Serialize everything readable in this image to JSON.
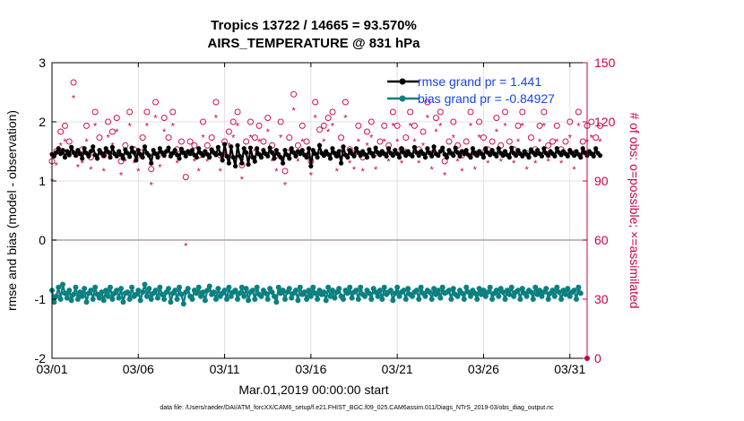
{
  "chart_data": {
    "type": "line",
    "title": "Tropics 13722 / 14665 = 93.570%",
    "subtitle": "AIRS_TEMPERATURE @ 831 hPa",
    "xlabel": "Mar.01,2019 00:00:00 start",
    "ylabel": "rmse and bias (model - observation)",
    "ylabel_right": "# of obs: o=possible; ×=assimilated",
    "footnote": "data file: /Users/raeder/DAI/ATM_forcXX/CAM6_setup/f.e21.FHIST_BGC.f09_025.CAM6assim.011/Diags_NTrS_2019-03/obs_diag_output.nc",
    "xlim": [
      1,
      32
    ],
    "ylim": [
      -2,
      3
    ],
    "ylim_right": [
      0,
      150
    ],
    "x_ticks": [
      1,
      6,
      11,
      16,
      21,
      26,
      31
    ],
    "x_tick_labels": [
      "03/01",
      "03/06",
      "03/11",
      "03/16",
      "03/21",
      "03/26",
      "03/31"
    ],
    "y_ticks": [
      -2,
      -1,
      0,
      1,
      2,
      3
    ],
    "y_tick_labels": [
      "-2",
      "-1",
      "0",
      "1",
      "2",
      "3"
    ],
    "y_ticks_right": [
      0,
      30,
      60,
      90,
      120,
      150
    ],
    "y_tick_labels_right": [
      "0",
      "30",
      "60",
      "90",
      "120",
      "150"
    ],
    "grid": true,
    "legend_position": "top-right",
    "zero_line": 0,
    "step_per_point": 0.125,
    "x_start": 1.0,
    "series": [
      {
        "name": "rmse grand pr = 1.441",
        "color": "#000000",
        "marker": "star",
        "values": [
          1.45,
          1.42,
          1.48,
          1.55,
          1.46,
          1.52,
          1.4,
          1.5,
          1.44,
          1.57,
          1.48,
          1.43,
          1.52,
          1.46,
          1.38,
          1.55,
          1.47,
          1.42,
          1.5,
          1.58,
          1.44,
          1.38,
          1.52,
          1.47,
          1.43,
          1.55,
          1.49,
          1.4,
          1.57,
          1.46,
          1.42,
          1.5,
          1.44,
          1.38,
          1.53,
          1.47,
          1.41,
          1.56,
          1.48,
          1.35,
          1.52,
          1.45,
          1.4,
          1.58,
          1.47,
          1.43,
          1.3,
          1.52,
          1.46,
          1.4,
          1.55,
          1.48,
          1.43,
          1.5,
          1.56,
          1.42,
          1.47,
          1.52,
          1.44,
          1.38,
          1.54,
          1.48,
          1.42,
          1.5,
          1.46,
          1.52,
          1.44,
          1.4,
          1.55,
          1.47,
          1.43,
          1.5,
          1.45,
          1.4,
          1.53,
          1.48,
          1.44,
          1.57,
          1.46,
          1.35,
          1.62,
          1.42,
          1.3,
          1.58,
          1.4,
          1.25,
          1.6,
          1.42,
          1.3,
          1.55,
          1.48,
          1.28,
          1.56,
          1.4,
          1.33,
          1.55,
          1.45,
          1.4,
          1.52,
          1.46,
          1.42,
          1.56,
          1.48,
          1.38,
          1.52,
          1.45,
          1.4,
          1.3,
          1.52,
          1.44,
          1.38,
          1.55,
          1.48,
          1.42,
          1.5,
          1.46,
          1.52,
          1.44,
          1.4,
          1.55,
          1.25,
          1.52,
          1.46,
          1.4,
          1.6,
          1.47,
          1.43,
          1.5,
          1.45,
          1.38,
          1.55,
          1.47,
          1.42,
          1.5,
          1.3,
          1.58,
          1.44,
          1.4,
          1.52,
          1.46,
          1.42,
          1.55,
          1.48,
          1.43,
          1.5,
          1.45,
          1.4,
          1.53,
          1.47,
          1.42,
          1.56,
          1.48,
          1.44,
          1.5,
          1.46,
          1.42,
          1.55,
          1.47,
          1.43,
          1.52,
          1.46,
          1.4,
          1.55,
          1.48,
          1.43,
          1.5,
          1.45,
          1.42,
          1.57,
          1.48,
          1.43,
          1.5,
          1.46,
          1.4,
          1.55,
          1.47,
          1.42,
          1.58,
          1.46,
          1.43,
          1.5,
          1.56,
          1.45,
          1.4,
          1.52,
          1.47,
          1.43,
          1.56,
          1.48,
          1.42,
          1.5,
          1.46,
          1.52,
          1.44,
          1.4,
          1.55,
          1.47,
          1.43,
          1.5,
          1.46,
          1.4,
          1.55,
          1.48,
          1.44,
          1.52,
          1.46,
          1.42,
          1.55,
          1.47,
          1.43,
          1.5,
          1.44,
          1.4,
          1.56,
          1.47,
          1.43,
          1.52,
          1.46,
          1.42,
          1.5,
          1.45,
          1.4,
          1.53,
          1.48,
          1.44,
          1.52,
          1.46,
          1.42,
          1.55,
          1.47,
          1.43,
          1.5,
          1.46,
          1.42,
          1.55,
          1.48,
          1.44,
          1.5,
          1.46,
          1.42,
          1.52,
          1.47,
          1.43,
          1.5,
          1.45,
          1.4,
          1.55,
          1.48,
          1.43,
          1.5,
          1.46,
          1.42,
          1.55,
          1.47,
          1.43
        ]
      },
      {
        "name": "bias grand pr = -0.84927",
        "color": "#0a8080",
        "marker": "circle",
        "values": [
          -0.85,
          -1.05,
          -0.95,
          -0.8,
          -1.0,
          -0.75,
          -0.9,
          -0.98,
          -0.85,
          -1.02,
          -0.92,
          -0.8,
          -1.0,
          -0.88,
          -0.95,
          -0.82,
          -1.05,
          -0.9,
          -0.85,
          -1.0,
          -0.8,
          -0.92,
          -0.98,
          -0.88,
          -1.02,
          -0.85,
          -0.95,
          -0.8,
          -1.0,
          -0.9,
          -0.85,
          -0.98,
          -0.82,
          -1.05,
          -0.9,
          -0.88,
          -1.0,
          -0.8,
          -0.95,
          -0.92,
          -0.85,
          -1.02,
          -0.88,
          -0.75,
          -0.95,
          -0.82,
          -1.0,
          -0.9,
          -0.85,
          -0.98,
          -0.8,
          -0.92,
          -1.0,
          -0.88,
          -0.82,
          -1.05,
          -0.9,
          -0.85,
          -1.0,
          -0.8,
          -0.92,
          -1.08,
          -0.88,
          -0.82,
          -0.95,
          -1.0,
          -0.85,
          -0.9,
          -0.8,
          -0.95,
          -0.88,
          -1.02,
          -0.85,
          -0.78,
          -0.92,
          -0.88,
          -1.0,
          -0.82,
          -0.95,
          -0.9,
          -0.85,
          -1.0,
          -0.8,
          -0.95,
          -0.88,
          -0.85,
          -1.0,
          -0.9,
          -0.8,
          -0.95,
          -0.82,
          -1.02,
          -0.88,
          -0.85,
          -1.0,
          -0.8,
          -0.92,
          -0.95,
          -0.85,
          -0.9,
          -1.0,
          -0.82,
          -0.88,
          -0.95,
          -1.05,
          -0.8,
          -0.9,
          -0.85,
          -1.0,
          -0.88,
          -0.82,
          -0.98,
          -0.9,
          -0.85,
          -1.02,
          -0.8,
          -0.92,
          -0.88,
          -1.0,
          -0.85,
          -0.95,
          -0.8,
          -0.9,
          -1.0,
          -0.85,
          -0.92,
          -0.88,
          -1.02,
          -0.8,
          -0.95,
          -0.85,
          -0.98,
          -0.88,
          -0.82,
          -0.95,
          -1.0,
          -0.85,
          -0.9,
          -0.8,
          -0.98,
          -0.88,
          -0.85,
          -1.0,
          -0.8,
          -0.92,
          -0.95,
          -0.85,
          -0.9,
          -1.0,
          -0.82,
          -0.88,
          -0.95,
          -0.85,
          -1.0,
          -0.8,
          -0.92,
          -0.88,
          -0.85,
          -1.02,
          -0.9,
          -0.8,
          -0.95,
          -0.88,
          -0.85,
          -1.0,
          -0.82,
          -0.92,
          -0.95,
          -0.88,
          -0.85,
          -1.0,
          -0.8,
          -0.9,
          -0.95,
          -0.85,
          -0.88,
          -1.0,
          -0.82,
          -0.92,
          -0.85,
          -0.98,
          -0.8,
          -0.9,
          -0.88,
          -0.85,
          -1.0,
          -0.82,
          -0.92,
          -0.95,
          -0.85,
          -0.9,
          -1.0,
          -0.8,
          -0.88,
          -0.95,
          -0.85,
          -0.9,
          -1.0,
          -0.82,
          -0.92,
          -0.85,
          -0.95,
          -0.88,
          -0.8,
          -1.0,
          -0.9,
          -0.85,
          -0.95,
          -0.82,
          -0.88,
          -1.0,
          -0.85,
          -0.92,
          -0.8,
          -0.95,
          -0.88,
          -0.85,
          -1.0,
          -0.82,
          -0.9,
          -0.95,
          -0.85,
          -0.88,
          -1.0,
          -0.8,
          -0.92,
          -0.85,
          -0.95,
          -0.88,
          -0.82,
          -1.0,
          -0.9,
          -0.85,
          -0.95,
          -0.8,
          -0.88,
          -1.0,
          -0.85,
          -0.92,
          -0.82,
          -0.95,
          -0.88,
          -0.85,
          -1.0,
          -0.8,
          -0.9
        ]
      }
    ],
    "obs_possible": [
      100,
      121,
      105,
      108,
      115,
      100,
      118,
      125,
      110,
      97,
      140,
      112,
      104,
      120,
      106,
      103,
      118,
      110,
      102,
      115,
      125,
      108,
      112,
      118,
      103,
      110,
      120,
      106,
      115,
      102,
      122,
      128,
      100,
      112,
      108,
      115,
      125,
      110,
      106,
      118,
      103,
      120,
      112,
      108,
      125,
      102,
      96,
      115,
      130,
      110,
      104,
      118,
      122,
      108,
      112,
      100,
      125,
      116,
      106,
      113,
      110,
      118,
      92,
      103,
      110,
      63,
      108,
      112,
      103,
      118,
      120,
      100,
      108,
      125,
      112,
      106,
      130,
      108,
      103,
      118,
      110,
      105,
      115,
      102,
      120,
      108,
      125,
      112,
      98,
      118,
      110,
      104,
      120,
      108,
      112,
      100,
      118,
      126,
      110,
      105,
      122,
      116,
      108,
      125,
      103,
      112,
      120,
      108,
      95,
      128,
      112,
      106,
      134,
      120,
      108,
      103,
      118,
      125,
      110,
      112,
      100,
      120,
      130,
      108,
      116,
      104,
      118,
      112,
      122,
      106,
      125,
      110,
      103,
      118,
      112,
      108,
      130,
      120,
      106,
      112,
      104,
      125,
      118,
      110,
      102,
      122,
      115,
      108,
      120,
      112,
      104,
      128,
      110,
      106,
      118,
      122,
      108,
      112,
      125,
      103,
      118,
      110,
      106,
      120,
      112,
      108,
      125,
      103,
      118,
      112,
      106,
      120,
      115,
      108,
      130,
      110,
      104,
      118,
      122,
      108,
      125,
      112,
      100,
      118,
      110,
      106,
      120,
      112,
      108,
      122,
      103,
      118,
      110,
      106,
      125,
      112,
      104,
      118,
      120,
      108,
      112,
      130,
      106,
      118,
      110,
      104,
      122,
      112,
      108,
      118,
      125,
      103,
      110,
      112,
      106,
      120,
      118,
      108,
      125,
      110,
      104,
      118,
      112,
      122,
      106,
      110,
      118,
      103,
      125,
      112,
      108,
      120,
      110,
      104,
      118,
      112,
      106,
      122,
      110,
      108,
      120,
      112,
      104,
      118,
      125,
      108,
      110,
      112,
      118,
      106,
      120,
      110,
      112,
      104,
      118,
      108
    ],
    "obs_assimilated": [
      90,
      112,
      98,
      103,
      108,
      94,
      110,
      118,
      102,
      88,
      132,
      105,
      97,
      112,
      99,
      95,
      110,
      103,
      96,
      108,
      118,
      100,
      105,
      112,
      95,
      103,
      112,
      99,
      108,
      95,
      115,
      120,
      93,
      105,
      100,
      108,
      118,
      103,
      99,
      110,
      95,
      112,
      105,
      100,
      118,
      95,
      88,
      108,
      122,
      103,
      97,
      110,
      115,
      100,
      105,
      93,
      118,
      108,
      99,
      105,
      103,
      110,
      57,
      96,
      103,
      57,
      100,
      105,
      95,
      110,
      112,
      93,
      100,
      118,
      105,
      99,
      122,
      100,
      95,
      110,
      103,
      97,
      108,
      95,
      112,
      100,
      118,
      105,
      91,
      110,
      103,
      96,
      112,
      100,
      105,
      93,
      110,
      118,
      103,
      97,
      115,
      108,
      100,
      118,
      95,
      105,
      112,
      100,
      88,
      120,
      105,
      99,
      126,
      112,
      100,
      95,
      110,
      118,
      103,
      105,
      93,
      112,
      122,
      100,
      108,
      96,
      110,
      105,
      115,
      99,
      118,
      103,
      95,
      110,
      105,
      100,
      122,
      112,
      99,
      105,
      96,
      118,
      110,
      103,
      95,
      115,
      108,
      100,
      112,
      105,
      96,
      120,
      103,
      99,
      110,
      115,
      100,
      105,
      118,
      95,
      110,
      103,
      99,
      112,
      105,
      100,
      118,
      95,
      110,
      105,
      99,
      112,
      108,
      100,
      122,
      103,
      96,
      110,
      115,
      100,
      118,
      105,
      93,
      110,
      103,
      99,
      112,
      105,
      100,
      115,
      95,
      110,
      103,
      99,
      118,
      105,
      96,
      110,
      112,
      100,
      105,
      122,
      99,
      110,
      103,
      96,
      115,
      105,
      100,
      110,
      118,
      95,
      103,
      105,
      99,
      112,
      110,
      100,
      118,
      103,
      96,
      110,
      105,
      115,
      99,
      103,
      110,
      95,
      118,
      105,
      100,
      112,
      103,
      96,
      110,
      105,
      99,
      115,
      103,
      100,
      112,
      105,
      96,
      110,
      118,
      100,
      103,
      105,
      110,
      99,
      112,
      103,
      105,
      96,
      110,
      100
    ]
  }
}
